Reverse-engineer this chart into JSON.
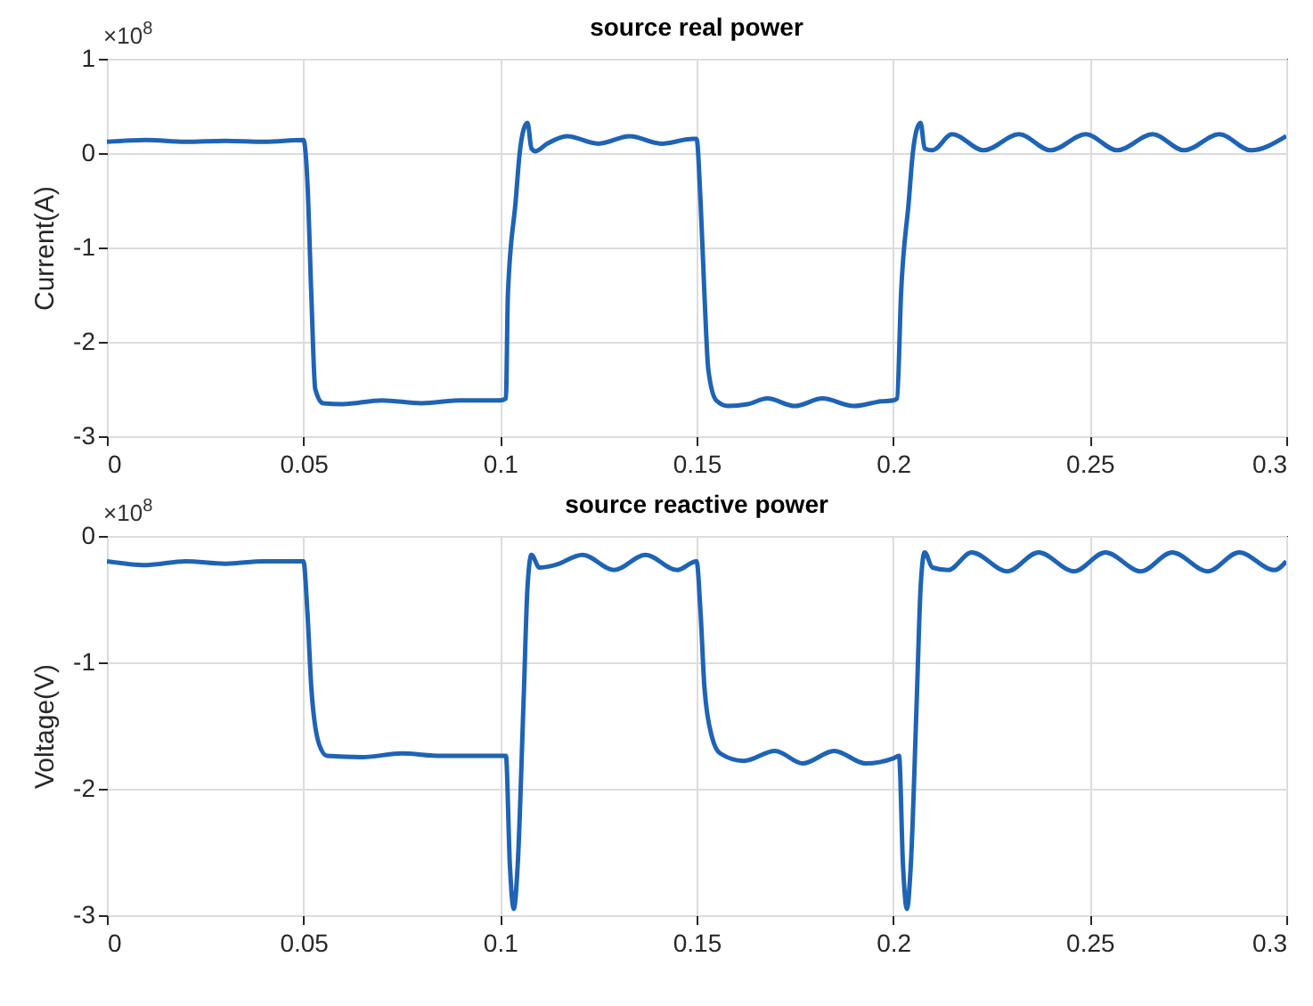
{
  "chart_data": [
    {
      "type": "line",
      "title": "source real power",
      "ylabel": "Current(A)",
      "annotations": [
        "×10$^{8}$"
      ],
      "xlim": [
        0,
        0.3
      ],
      "xticks": [
        0,
        0.05,
        0.1,
        0.15,
        0.2,
        0.25,
        0.3
      ],
      "ylim": [
        -3,
        1
      ],
      "yticks": [
        -3,
        -2,
        -1,
        0,
        1
      ],
      "grid": true,
      "x": [
        0,
        0.01,
        0.02,
        0.03,
        0.04,
        0.05,
        0.051,
        0.052,
        0.053,
        0.055,
        0.06,
        0.07,
        0.08,
        0.09,
        0.1,
        0.1015,
        0.102,
        0.104,
        0.105,
        0.106,
        0.107,
        0.108,
        0.109,
        0.112,
        0.117,
        0.125,
        0.133,
        0.141,
        0.149,
        0.15,
        0.151,
        0.152,
        0.153,
        0.155,
        0.158,
        0.163,
        0.168,
        0.175,
        0.182,
        0.19,
        0.197,
        0.2,
        0.201,
        0.202,
        0.204,
        0.205,
        0.206,
        0.207,
        0.208,
        0.21,
        0.215,
        0.223,
        0.232,
        0.24,
        0.249,
        0.257,
        0.266,
        0.274,
        0.283,
        0.291,
        0.3
      ],
      "series": [
        {
          "color": "#1f63b4",
          "values": [
            0.12,
            0.14,
            0.12,
            0.13,
            0.12,
            0.14,
            -0.3,
            -1.5,
            -2.5,
            -2.65,
            -2.66,
            -2.62,
            -2.65,
            -2.62,
            -2.62,
            -2.6,
            -1.5,
            -0.5,
            0,
            0.25,
            0.32,
            0.05,
            0.02,
            0.1,
            0.18,
            0.1,
            0.18,
            0.1,
            0.15,
            0.15,
            -0.5,
            -1.5,
            -2.3,
            -2.62,
            -2.68,
            -2.66,
            -2.6,
            -2.68,
            -2.6,
            -2.68,
            -2.63,
            -2.62,
            -2.6,
            -1.5,
            -0.5,
            0,
            0.25,
            0.32,
            0.05,
            0.03,
            0.2,
            0.03,
            0.2,
            0.03,
            0.2,
            0.03,
            0.2,
            0.03,
            0.2,
            0.03,
            0.18
          ]
        }
      ]
    },
    {
      "type": "line",
      "title": "source reactive power",
      "ylabel": "Voltage(V)",
      "annotations": [
        "×10$^{8}$"
      ],
      "xlim": [
        0,
        0.3
      ],
      "xticks": [
        0,
        0.05,
        0.1,
        0.15,
        0.2,
        0.25,
        0.3
      ],
      "ylim": [
        -3,
        0
      ],
      "yticks": [
        -3,
        -2,
        -1,
        0
      ],
      "grid": true,
      "x": [
        0,
        0.01,
        0.02,
        0.03,
        0.04,
        0.05,
        0.051,
        0.052,
        0.054,
        0.056,
        0.065,
        0.075,
        0.085,
        0.1,
        0.1015,
        0.1025,
        0.1035,
        0.1045,
        0.106,
        0.107,
        0.108,
        0.11,
        0.114,
        0.121,
        0.129,
        0.137,
        0.145,
        0.15,
        0.151,
        0.152,
        0.154,
        0.156,
        0.162,
        0.17,
        0.177,
        0.185,
        0.193,
        0.2,
        0.2015,
        0.2025,
        0.2035,
        0.2045,
        0.206,
        0.207,
        0.208,
        0.21,
        0.214,
        0.22,
        0.229,
        0.237,
        0.246,
        0.254,
        0.263,
        0.271,
        0.28,
        0.288,
        0.297,
        0.3
      ],
      "series": [
        {
          "color": "#1f63b4",
          "values": [
            -0.2,
            -0.23,
            -0.2,
            -0.22,
            -0.2,
            -0.2,
            -0.6,
            -1.2,
            -1.65,
            -1.74,
            -1.75,
            -1.72,
            -1.74,
            -1.74,
            -1.74,
            -2.6,
            -2.95,
            -2.6,
            -1.3,
            -0.4,
            -0.15,
            -0.25,
            -0.23,
            -0.15,
            -0.27,
            -0.15,
            -0.27,
            -0.2,
            -0.6,
            -1.2,
            -1.6,
            -1.72,
            -1.78,
            -1.7,
            -1.8,
            -1.7,
            -1.8,
            -1.76,
            -1.74,
            -2.6,
            -2.95,
            -2.6,
            -1.3,
            -0.4,
            -0.13,
            -0.25,
            -0.27,
            -0.13,
            -0.28,
            -0.13,
            -0.28,
            -0.13,
            -0.28,
            -0.13,
            -0.28,
            -0.13,
            -0.27,
            -0.2
          ]
        }
      ]
    }
  ]
}
